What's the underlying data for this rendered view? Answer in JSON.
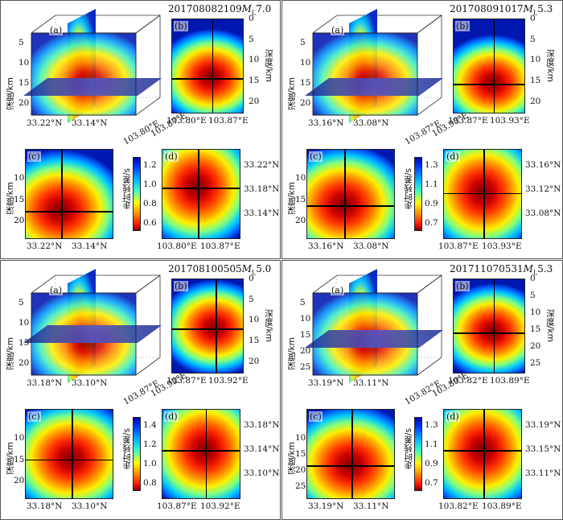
{
  "colors": {
    "deep_red": "#800000",
    "red": "#ff1100",
    "orange": "#ff8800",
    "yellow": "#ffff00",
    "cyan": "#00b4ff",
    "blue": "#0000b0",
    "plane": "#2a3aa0"
  },
  "chart_data": [
    {
      "type": "heatmap",
      "title_id": "201708082109",
      "title_mag": "M",
      "title_sub": "L",
      "title_val": "7.0",
      "colorbar": {
        "label": "走时残差/s",
        "range": [
          0.55,
          1.3
        ],
        "ticks": [
          "1.2",
          "1.0",
          "0.8",
          "0.6"
        ]
      },
      "depth_label": "深度/km",
      "panel_a": {
        "letter": "(a)",
        "depth_ticks": [
          "5",
          "10",
          "15",
          "20"
        ],
        "lat_ticks": [
          "33.22°N",
          "33.14°N"
        ],
        "lon_ticks": [
          "103.80°E",
          "103.87°E"
        ]
      },
      "panel_b": {
        "letter": "(b)",
        "depth_ticks": [
          "0",
          "5",
          "10",
          "15",
          "20"
        ],
        "x_ticks": [
          "103.80°E",
          "103.87°E"
        ]
      },
      "panel_c": {
        "letter": "(c)",
        "depth_ticks": [
          "10",
          "15",
          "20"
        ],
        "x_ticks": [
          "33.22°N",
          "33.14°N"
        ]
      },
      "panel_d": {
        "letter": "(d)",
        "lat_ticks": [
          "33.22°N",
          "33.18°N",
          "33.14°N"
        ],
        "x_ticks": [
          "103.80°E",
          "103.87°E"
        ]
      },
      "best_solution": {
        "lon": "103.85°E",
        "lat": "33.19°N",
        "depth_km": 16
      }
    },
    {
      "type": "heatmap",
      "title_id": "201708091017",
      "title_mag": "M",
      "title_sub": "L",
      "title_val": "5.3",
      "colorbar": {
        "label": "走时残差/s",
        "range": [
          0.65,
          1.4
        ],
        "ticks": [
          "1.3",
          "1.1",
          "0.9",
          "0.7"
        ]
      },
      "depth_label": "深度/km",
      "panel_a": {
        "letter": "(a)",
        "depth_ticks": [
          "5",
          "10",
          "15",
          "20"
        ],
        "lat_ticks": [
          "33.16°N",
          "33.08°N"
        ],
        "lon_ticks": [
          "103.87°E",
          "103.93°E"
        ]
      },
      "panel_b": {
        "letter": "(b)",
        "depth_ticks": [
          "0",
          "5",
          "10",
          "15",
          "20"
        ],
        "x_ticks": [
          "103.87°E",
          "103.93°E"
        ]
      },
      "panel_c": {
        "letter": "(c)",
        "depth_ticks": [
          "10",
          "15",
          "20"
        ],
        "x_ticks": [
          "33.16°N",
          "33.08°N"
        ]
      },
      "panel_d": {
        "letter": "(d)",
        "lat_ticks": [
          "33.16°N",
          "33.12°N",
          "33.08°N"
        ],
        "x_ticks": [
          "103.87°E",
          "103.93°E"
        ]
      },
      "best_solution": {
        "lon": "103.89°E",
        "lat": "33.11°N",
        "depth_km": 15
      }
    },
    {
      "type": "heatmap",
      "title_id": "201708100505",
      "title_mag": "M",
      "title_sub": "L",
      "title_val": "5.0",
      "colorbar": {
        "label": "走时残差/s",
        "range": [
          0.75,
          1.5
        ],
        "ticks": [
          "1.4",
          "1.2",
          "1.0",
          "0.8"
        ]
      },
      "depth_label": "深度/km",
      "panel_a": {
        "letter": "(a)",
        "depth_ticks": [
          "5",
          "10",
          "15",
          "20"
        ],
        "lat_ticks": [
          "33.18°N",
          "33.10°N"
        ],
        "lon_ticks": [
          "103.87°E",
          "103.92°E"
        ]
      },
      "panel_b": {
        "letter": "(b)",
        "depth_ticks": [
          "0",
          "5",
          "10",
          "15",
          "20"
        ],
        "x_ticks": [
          "103.87°E",
          "103.92°E"
        ]
      },
      "panel_c": {
        "letter": "(c)",
        "depth_ticks": [
          "10",
          "15",
          "20"
        ],
        "x_ticks": [
          "33.18°N",
          "33.10°N"
        ]
      },
      "panel_d": {
        "letter": "(d)",
        "lat_ticks": [
          "33.18°N",
          "33.14°N",
          "33.10°N"
        ],
        "x_ticks": [
          "103.87°E",
          "103.92°E"
        ]
      },
      "best_solution": {
        "lon": "103.90°E",
        "lat": "33.13°N",
        "depth_km": 12
      }
    },
    {
      "type": "heatmap",
      "title_id": "201711070531",
      "title_mag": "M",
      "title_sub": "L",
      "title_val": "5.3",
      "colorbar": {
        "label": "走时残差/s",
        "range": [
          0.65,
          1.4
        ],
        "ticks": [
          "1.3",
          "1.1",
          "0.9",
          "0.7"
        ]
      },
      "depth_label": "深度/km",
      "panel_a": {
        "letter": "(a)",
        "depth_ticks": [
          "5",
          "10",
          "15",
          "20",
          "25"
        ],
        "lat_ticks": [
          "33.19°N",
          "33.11°N"
        ],
        "lon_ticks": [
          "103.82°E",
          "103.89°E"
        ]
      },
      "panel_b": {
        "letter": "(b)",
        "depth_ticks": [
          "0",
          "5",
          "10",
          "15",
          "20",
          "25"
        ],
        "x_ticks": [
          "103.82°E",
          "103.89°E"
        ]
      },
      "panel_c": {
        "letter": "(c)",
        "depth_ticks": [
          "10",
          "15",
          "20",
          "25"
        ],
        "x_ticks": [
          "33.19°N",
          "33.11°N"
        ]
      },
      "panel_d": {
        "letter": "(d)",
        "lat_ticks": [
          "33.19°N",
          "33.15°N",
          "33.11°N"
        ],
        "x_ticks": [
          "103.82°E",
          "103.89°E"
        ]
      },
      "best_solution": {
        "lon": "103.85°E",
        "lat": "33.15°N",
        "depth_km": 15
      }
    }
  ]
}
